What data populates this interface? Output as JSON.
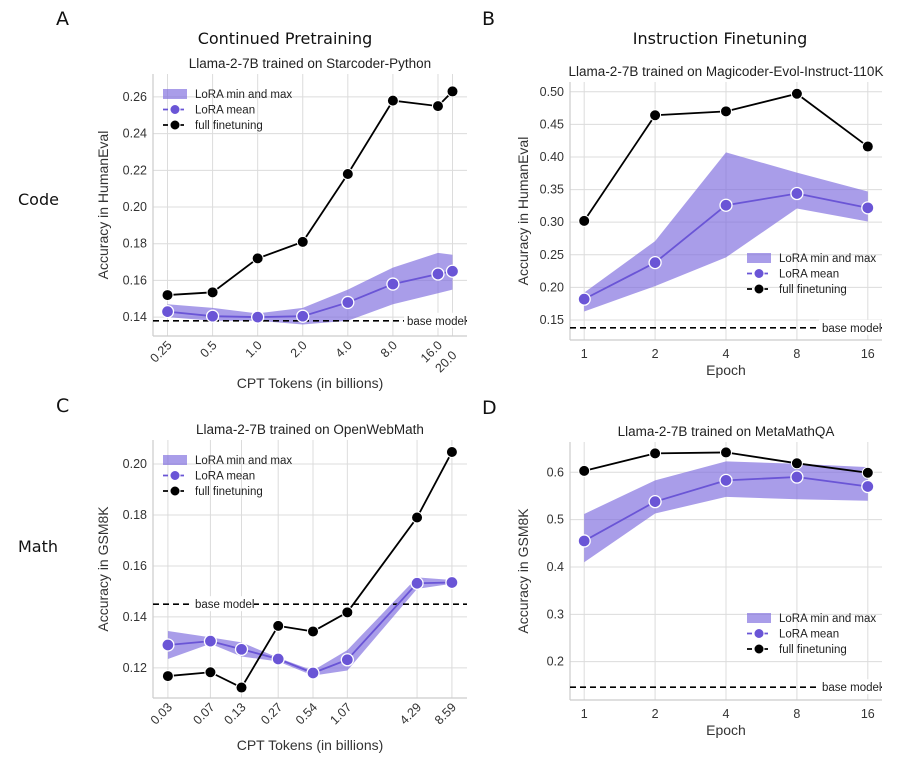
{
  "panel_labels": [
    "A",
    "B",
    "C",
    "D"
  ],
  "column_titles": [
    "Continued Pretraining",
    "Instruction Finetuning"
  ],
  "row_labels": [
    "Code",
    "Math"
  ],
  "colors": {
    "band": "#7b68dd",
    "mean": "#6a55d6",
    "full": "#000000",
    "base": "#000000",
    "grid": "#dcdcdc"
  },
  "chart_data": [
    {
      "type": "line",
      "title": "Llama-2-7B trained on Starcoder-Python",
      "xlabel": "CPT Tokens (in billions)",
      "ylabel": "Accuracy in HumanEval",
      "xscale": "log2",
      "x": [
        0.25,
        0.5,
        1.0,
        2.0,
        4.0,
        8.0,
        16.0,
        20.0
      ],
      "xtick_labels": [
        "0.25",
        "0.5",
        "1.0",
        "2.0",
        "4.0",
        "8.0",
        "16.0",
        "20.0"
      ],
      "xlim": [
        0.2,
        25
      ],
      "ylim": [
        0.1297,
        0.2725
      ],
      "yticks": [
        0.14,
        0.16,
        0.18,
        0.2,
        0.22,
        0.24,
        0.26
      ],
      "ytick_labels": [
        "0.14",
        "0.16",
        "0.18",
        "0.20",
        "0.22",
        "0.24",
        "0.26"
      ],
      "grid": true,
      "legend": "upper-left",
      "series": [
        {
          "name": "LoRA min and max",
          "kind": "band",
          "lower": [
            0.14,
            0.138,
            0.138,
            0.136,
            0.138,
            0.147,
            0.153,
            0.155
          ],
          "upper": [
            0.147,
            0.145,
            0.142,
            0.145,
            0.155,
            0.167,
            0.175,
            0.174
          ]
        },
        {
          "name": "LoRA mean",
          "kind": "mean",
          "values": [
            0.143,
            0.1405,
            0.14,
            0.1405,
            0.148,
            0.158,
            0.1635,
            0.165
          ]
        },
        {
          "name": "full finetuning",
          "kind": "full",
          "values": [
            0.152,
            0.1535,
            0.172,
            0.181,
            0.218,
            0.258,
            0.255,
            0.263
          ]
        }
      ],
      "reference": {
        "label": "base model",
        "value": 0.138
      }
    },
    {
      "type": "line",
      "title": "Llama-2-7B trained on Magicoder-Evol-Instruct-110K",
      "xlabel": "Epoch",
      "ylabel": "Accuracy in HumanEval",
      "xscale": "categorical",
      "x": [
        1,
        2,
        4,
        8,
        16
      ],
      "xtick_labels": [
        "1",
        "2",
        "4",
        "8",
        "16"
      ],
      "ylim": [
        0.1193,
        0.515
      ],
      "yticks": [
        0.15,
        0.2,
        0.25,
        0.3,
        0.35,
        0.4,
        0.45,
        0.5
      ],
      "ytick_labels": [
        "0.15",
        "0.20",
        "0.25",
        "0.30",
        "0.35",
        "0.40",
        "0.45",
        "0.50"
      ],
      "grid": true,
      "legend": "lower-right",
      "series": [
        {
          "name": "LoRA min and max",
          "kind": "band",
          "lower": [
            0.163,
            0.202,
            0.246,
            0.321,
            0.301
          ],
          "upper": [
            0.192,
            0.271,
            0.407,
            0.376,
            0.347
          ]
        },
        {
          "name": "LoRA mean",
          "kind": "mean",
          "values": [
            0.182,
            0.238,
            0.326,
            0.344,
            0.322
          ]
        },
        {
          "name": "full finetuning",
          "kind": "full",
          "values": [
            0.302,
            0.464,
            0.47,
            0.497,
            0.416
          ]
        }
      ],
      "reference": {
        "label": "base model",
        "value": 0.138
      }
    },
    {
      "type": "line",
      "title": "Llama-2-7B trained on OpenWebMath",
      "xlabel": "CPT Tokens (in billions)",
      "ylabel": "Accuracy in GSM8K",
      "xscale": "log2",
      "x": [
        0.03,
        0.07,
        0.13,
        0.27,
        0.54,
        1.07,
        4.29,
        8.59
      ],
      "xtick_labels": [
        "0.03",
        "0.07",
        "0.13",
        "0.27",
        "0.54",
        "1.07",
        "4.29",
        "8.59"
      ],
      "xlim": [
        0.0223,
        11.6
      ],
      "ylim": [
        0.1082,
        0.2094
      ],
      "yticks": [
        0.12,
        0.14,
        0.16,
        0.18,
        0.2
      ],
      "ytick_labels": [
        "0.12",
        "0.14",
        "0.16",
        "0.18",
        "0.20"
      ],
      "grid": true,
      "legend": "upper-left",
      "series": [
        {
          "name": "LoRA min and max",
          "kind": "band",
          "lower": [
            0.1235,
            0.1295,
            0.1245,
            0.1225,
            0.117,
            0.119,
            0.151,
            0.153
          ],
          "upper": [
            0.1345,
            0.132,
            0.13,
            0.124,
            0.119,
            0.127,
            0.1555,
            0.1545
          ]
        },
        {
          "name": "LoRA mean",
          "kind": "mean",
          "values": [
            0.129,
            0.1305,
            0.1273,
            0.1235,
            0.118,
            0.1232,
            0.1532,
            0.1535
          ]
        },
        {
          "name": "full finetuning",
          "kind": "full",
          "values": [
            0.1168,
            0.1183,
            0.1123,
            0.1365,
            0.1343,
            0.1418,
            0.179,
            0.2047
          ]
        }
      ],
      "reference": {
        "label": "base model",
        "value": 0.145
      }
    },
    {
      "type": "line",
      "title": "Llama-2-7B trained on MetaMathQA",
      "xlabel": "Epoch",
      "ylabel": "Accuracy in GSM8K",
      "xscale": "categorical",
      "x": [
        1,
        2,
        4,
        8,
        16
      ],
      "xtick_labels": [
        "1",
        "2",
        "4",
        "8",
        "16"
      ],
      "ylim": [
        0.119,
        0.664
      ],
      "yticks": [
        0.2,
        0.3,
        0.4,
        0.5,
        0.6
      ],
      "ytick_labels": [
        "0.2",
        "0.3",
        "0.4",
        "0.5",
        "0.6"
      ],
      "grid": true,
      "legend": "lower-right",
      "series": [
        {
          "name": "LoRA min and max",
          "kind": "band",
          "lower": [
            0.41,
            0.513,
            0.548,
            0.543,
            0.54
          ],
          "upper": [
            0.512,
            0.583,
            0.623,
            0.618,
            0.611
          ]
        },
        {
          "name": "LoRA mean",
          "kind": "mean",
          "values": [
            0.455,
            0.538,
            0.583,
            0.59,
            0.57
          ]
        },
        {
          "name": "full finetuning",
          "kind": "full",
          "values": [
            0.603,
            0.64,
            0.642,
            0.619,
            0.599
          ]
        }
      ],
      "reference": {
        "label": "base model",
        "value": 0.146
      }
    }
  ]
}
